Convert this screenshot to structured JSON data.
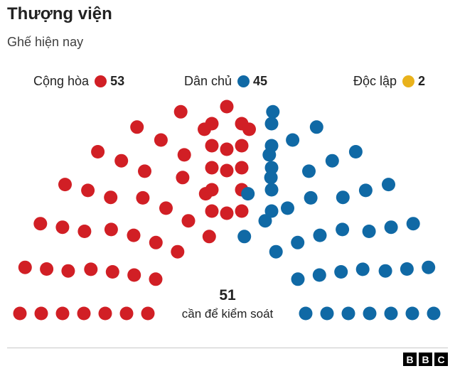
{
  "chart_data": {
    "type": "parliament",
    "title": "Thượng viện",
    "subtitle": "Ghế hiện nay",
    "series": [
      {
        "name": "Cộng hòa",
        "values": [
          53
        ],
        "color": "#d11f25"
      },
      {
        "name": "Dân chủ",
        "values": [
          45
        ],
        "color": "#1069a5"
      },
      {
        "name": "Độc lập",
        "values": [
          2
        ],
        "color": "#e9b21c"
      }
    ],
    "total_seats": 100,
    "threshold": {
      "value": "51",
      "label": "cần để kiểm soát"
    },
    "legend_position": "top"
  },
  "brand": {
    "letters": [
      "B",
      "B",
      "C"
    ]
  }
}
